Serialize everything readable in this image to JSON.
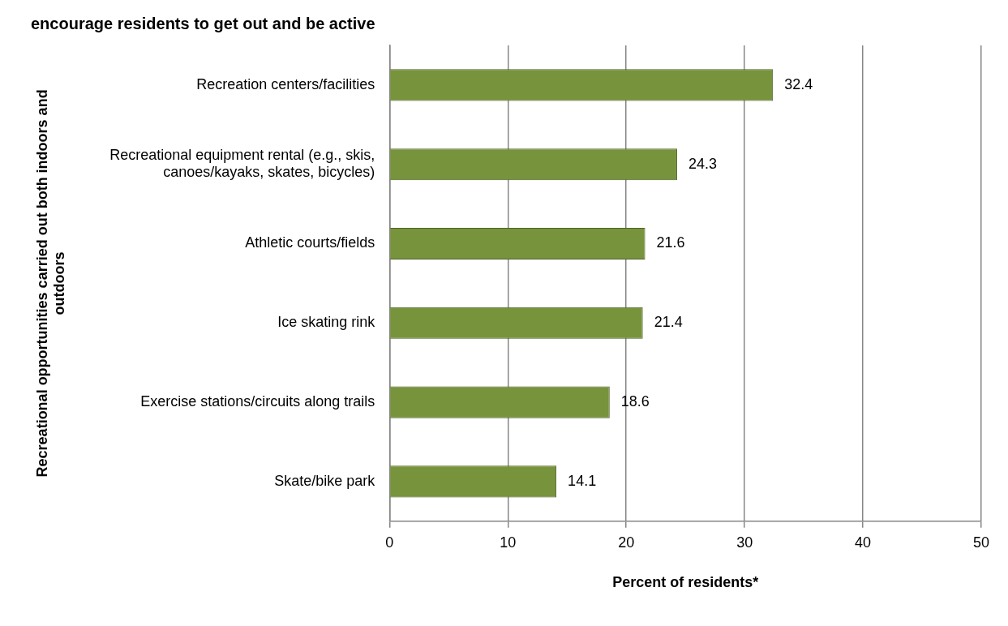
{
  "chart_data": {
    "type": "bar",
    "orientation": "horizontal",
    "title": "encourage residents to get out and be active",
    "xlabel": "Percent of residents*",
    "ylabel": "Recreational opportunities carried out both indoors and outdoors",
    "categories": [
      "Recreation centers/facilities",
      "Recreational equipment rental (e.g., skis, canoes/kayaks, skates, bicycles)",
      "Athletic courts/fields",
      "Ice skating rink",
      "Exercise stations/circuits along trails",
      "Skate/bike park"
    ],
    "values": [
      32.4,
      24.3,
      21.6,
      21.4,
      18.6,
      14.1
    ],
    "color": "#77933c",
    "xlim": [
      0,
      50
    ],
    "xticks": [
      0,
      10,
      20,
      30,
      40,
      50
    ],
    "grid": "x",
    "legend": false,
    "data_labels": true
  }
}
